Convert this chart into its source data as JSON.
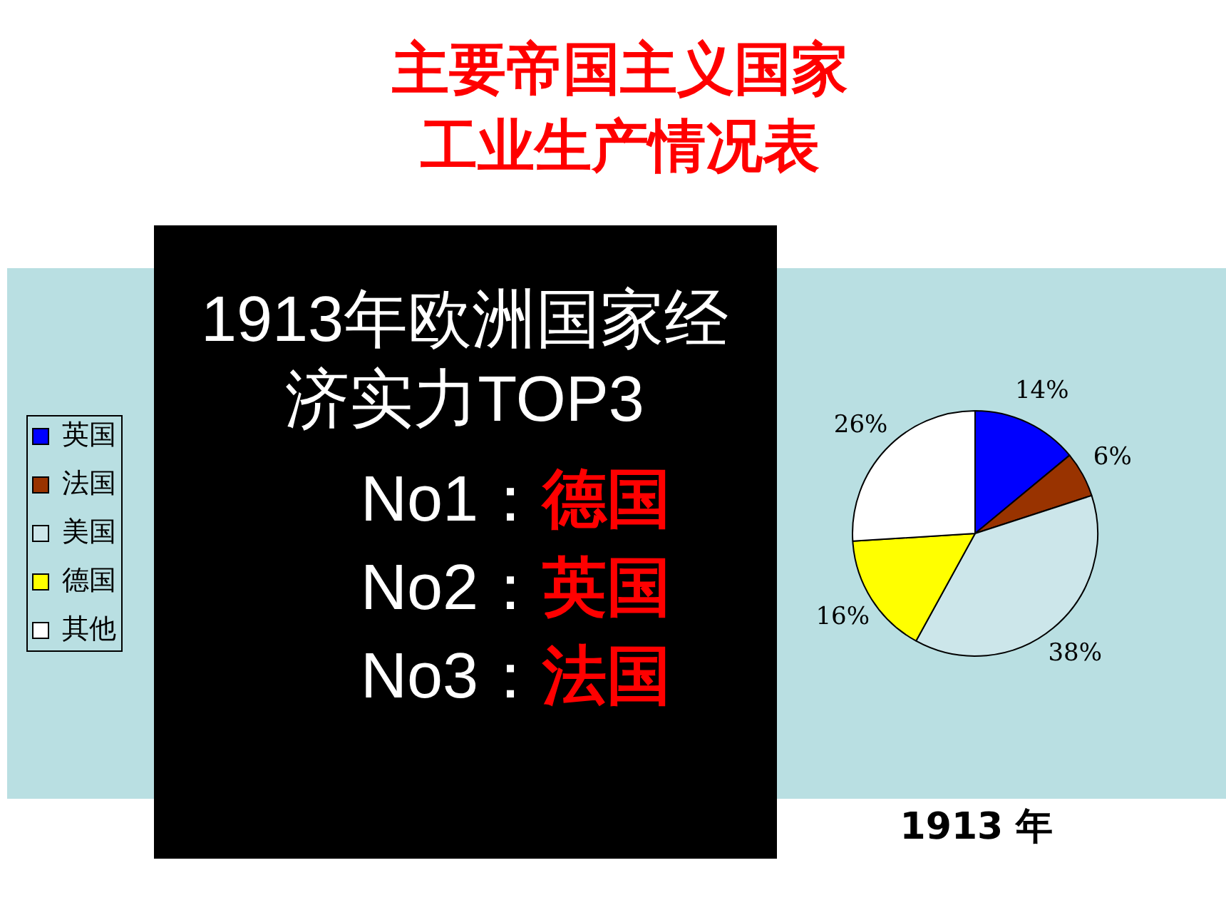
{
  "chart_data": {
    "type": "pie",
    "title": "主要帝国主义国家工业生产情况表",
    "categories": [
      "英国",
      "法国",
      "美国",
      "德国",
      "其他"
    ],
    "values": [
      14,
      6,
      38,
      16,
      26
    ],
    "colors": [
      "#0000ff",
      "#993300",
      "#cce6ea",
      "#ffff00",
      "#ffffff"
    ],
    "value_labels": [
      "14%",
      "6%",
      "38%",
      "16%",
      "26%"
    ],
    "legend": "left",
    "annotations": [
      "1913年欧洲国家经济实力TOP3",
      "No1：德国",
      "No2：英国",
      "No3：法国",
      "1913 年"
    ]
  }
}
